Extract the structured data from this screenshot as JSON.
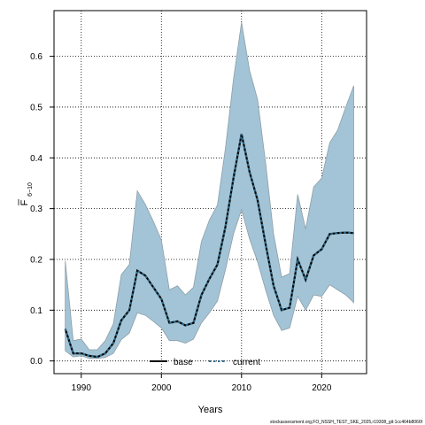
{
  "chart_data": {
    "type": "line",
    "xlabel": "Years",
    "ylabel_main": "F",
    "ylabel_sub": "6−10",
    "xlim": [
      1986.6,
      2025.6
    ],
    "ylim": [
      -0.025,
      0.69
    ],
    "grid": true,
    "x_ticks": [
      1990,
      2000,
      2010,
      2020
    ],
    "x_tick_labels": [
      "1990",
      "2000",
      "2010",
      "2020"
    ],
    "y_ticks": [
      0.0,
      0.1,
      0.2,
      0.3,
      0.4,
      0.5,
      0.6
    ],
    "y_tick_labels": [
      "0.0",
      "0.1",
      "0.2",
      "0.3",
      "0.4",
      "0.5",
      "0.6"
    ],
    "x": [
      1988,
      1989,
      1990,
      1991,
      1992,
      1993,
      1994,
      1995,
      1996,
      1997,
      1998,
      1999,
      2000,
      2001,
      2002,
      2003,
      2004,
      2005,
      2006,
      2007,
      2008,
      2009,
      2010,
      2011,
      2012,
      2013,
      2014,
      2015,
      2016,
      2017,
      2018,
      2019,
      2020,
      2021,
      2022,
      2023,
      2024
    ],
    "band_upper": [
      0.197,
      0.04,
      0.043,
      0.022,
      0.022,
      0.04,
      0.073,
      0.17,
      0.19,
      0.335,
      0.308,
      0.275,
      0.238,
      0.14,
      0.148,
      0.13,
      0.145,
      0.235,
      0.278,
      0.307,
      0.42,
      0.555,
      0.667,
      0.572,
      0.515,
      0.39,
      0.25,
      0.165,
      0.172,
      0.328,
      0.26,
      0.343,
      0.36,
      0.43,
      0.455,
      0.5,
      0.542
    ],
    "band_lower": [
      0.02,
      0.008,
      0.01,
      0.005,
      0.005,
      0.007,
      0.015,
      0.042,
      0.055,
      0.095,
      0.09,
      0.078,
      0.065,
      0.04,
      0.04,
      0.035,
      0.043,
      0.075,
      0.095,
      0.118,
      0.18,
      0.25,
      0.298,
      0.24,
      0.195,
      0.14,
      0.09,
      0.06,
      0.065,
      0.127,
      0.1,
      0.13,
      0.127,
      0.15,
      0.14,
      0.13,
      0.115
    ],
    "series": [
      {
        "name": "base",
        "values": [
          null,
          null,
          null,
          null,
          null,
          null,
          null,
          null,
          null,
          null,
          null,
          null,
          null,
          null,
          null,
          null,
          null,
          null,
          null,
          null,
          null,
          null,
          null,
          null,
          null,
          null,
          null,
          null,
          null,
          null,
          null,
          null,
          null,
          null,
          null,
          null,
          null
        ]
      },
      {
        "name": "current",
        "values": [
          0.063,
          0.015,
          0.015,
          0.01,
          0.008,
          0.015,
          0.035,
          0.08,
          0.1,
          0.178,
          0.168,
          0.145,
          0.122,
          0.075,
          0.078,
          0.07,
          0.075,
          0.13,
          0.162,
          0.19,
          0.265,
          0.36,
          0.447,
          0.372,
          0.317,
          0.23,
          0.148,
          0.1,
          0.105,
          0.2,
          0.16,
          0.208,
          0.22,
          0.25,
          0.252,
          0.253,
          0.252
        ]
      }
    ],
    "legend": [
      "base",
      "current"
    ],
    "legend_position": "bottom-center",
    "colors": {
      "band": "#a3c4d6",
      "band_edge": "#8c9ea8",
      "current_line": "#000000",
      "current_dot": "#2f6a89",
      "base_line": "#000000"
    }
  },
  "footer": "stockassessment.org,FO_NSSH_TEST_SKE_2025,r19308_git:1cc464b8066f"
}
